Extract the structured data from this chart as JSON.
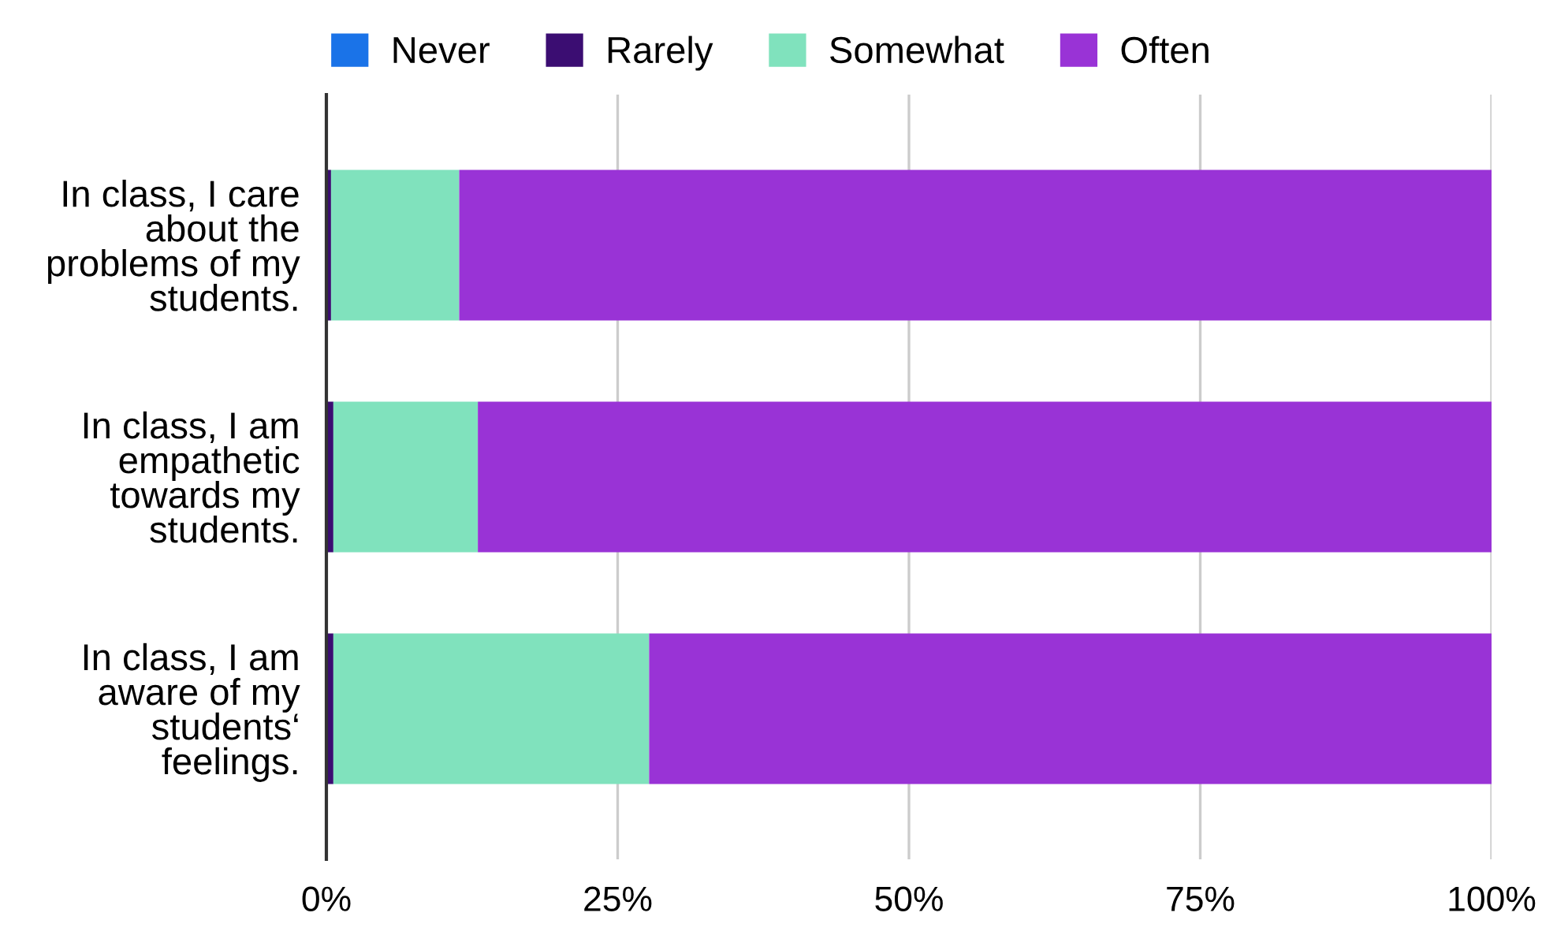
{
  "chart_data": {
    "type": "bar",
    "orientation": "horizontal",
    "stacked": true,
    "categories": [
      "In class, I care\nabout the\nproblems of my\nstudents.",
      "In class, I am\nempathetic\ntowards my\nstudents.",
      "In class, I am\naware of my\nstudents‘\nfeelings."
    ],
    "series": [
      {
        "name": "Never",
        "color": "#1a73e8",
        "values": [
          0,
          0,
          0
        ]
      },
      {
        "name": "Rarely",
        "color": "#3b0d72",
        "values": [
          0.4,
          0.6,
          0.6
        ]
      },
      {
        "name": "Somewhat",
        "color": "#80e2bd",
        "values": [
          11.0,
          12.4,
          27.1
        ]
      },
      {
        "name": "Often",
        "color": "#9933d6",
        "values": [
          88.6,
          87.0,
          72.3
        ]
      }
    ],
    "xlim": [
      0,
      100
    ],
    "xticks": [
      {
        "value": 0,
        "label": "0%"
      },
      {
        "value": 25,
        "label": "25%"
      },
      {
        "value": 50,
        "label": "50%"
      },
      {
        "value": 75,
        "label": "75%"
      },
      {
        "value": 100,
        "label": "100%"
      }
    ],
    "grid": "x",
    "legend": "top"
  }
}
